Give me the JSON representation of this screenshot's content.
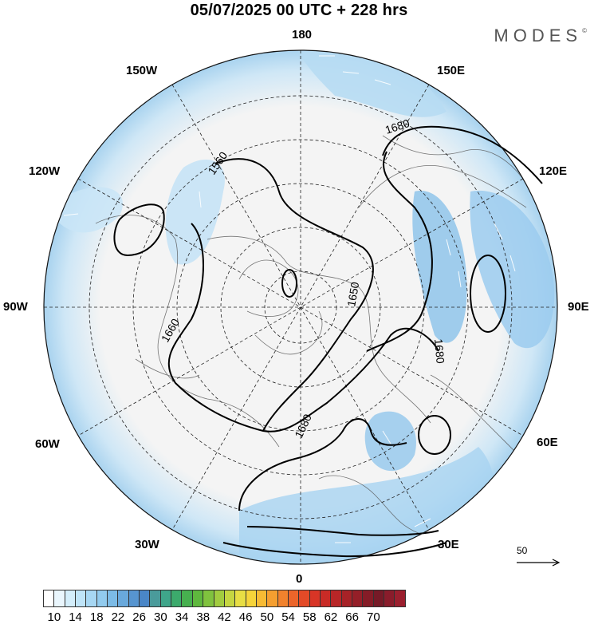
{
  "title": "05/07/2025  00 UTC  + 228 hrs",
  "brand": "MODES",
  "brand_mark": "©",
  "longitude_labels": {
    "top": "180",
    "top_left": "150W",
    "top_right": "150E",
    "upper_left": "120W",
    "upper_right": "120E",
    "left": "90W",
    "right": "90E",
    "lower_left": "60W",
    "lower_right": "60E",
    "bottom_left": "30W",
    "bottom_right": "30E",
    "bottom": "0"
  },
  "contour_labels": [
    "1680",
    "1560",
    "1650",
    "1660",
    "1680",
    "1680"
  ],
  "wind_reference": "50",
  "colorbar": {
    "labels": [
      "10",
      "14",
      "18",
      "22",
      "26",
      "30",
      "34",
      "38",
      "42",
      "46",
      "50",
      "54",
      "58",
      "62",
      "66",
      "70"
    ],
    "colors": [
      "#ffffff",
      "#eaf6fd",
      "#d4eefb",
      "#bfe4f8",
      "#a7d7f3",
      "#92cbee",
      "#7cbbe6",
      "#69a9dc",
      "#5795d0",
      "#4a86c7",
      "#4a9b9b",
      "#3fa58a",
      "#3caa6c",
      "#47b04f",
      "#5fb83e",
      "#80c23e",
      "#a2cc3f",
      "#c6d641",
      "#e8de44",
      "#f6d43a",
      "#f7bb34",
      "#f59f30",
      "#f1822d",
      "#ec652a",
      "#e34a27",
      "#d83526",
      "#c92b26",
      "#b82627",
      "#a72227",
      "#951f28",
      "#851c27",
      "#761a27",
      "#8a1c2b",
      "#9b1f2e"
    ]
  }
}
